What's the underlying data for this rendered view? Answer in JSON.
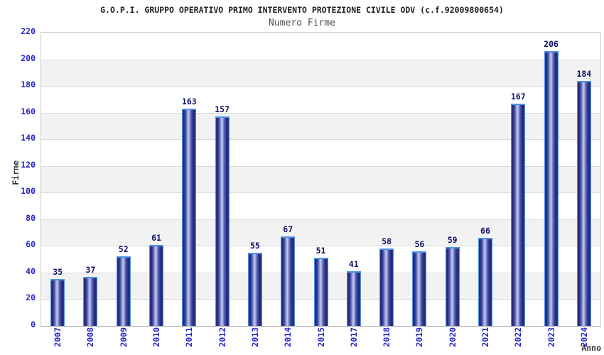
{
  "header": {
    "title": "G.O.P.I. GRUPPO OPERATIVO PRIMO INTERVENTO PROTEZIONE CIVILE ODV (c.f.92009800654)",
    "subtitle": "Numero Firme"
  },
  "chart_data": {
    "type": "bar",
    "title": "G.O.P.I. GRUPPO OPERATIVO PRIMO INTERVENTO PROTEZIONE CIVILE ODV (c.f.92009800654)",
    "subtitle": "Numero Firme",
    "categories": [
      "2007",
      "2008",
      "2009",
      "2010",
      "2011",
      "2012",
      "2013",
      "2014",
      "2015",
      "2017",
      "2018",
      "2019",
      "2020",
      "2021",
      "2022",
      "2023",
      "2024"
    ],
    "values": [
      35,
      37,
      52,
      61,
      163,
      157,
      55,
      67,
      51,
      41,
      58,
      56,
      59,
      66,
      167,
      206,
      184
    ],
    "xlabel": "Anno",
    "ylabel": "Firme",
    "ylim": [
      0,
      220
    ],
    "ytick_step": 20,
    "grid": true,
    "band_fill": "alternating",
    "legend": "none",
    "colors": {
      "bar_dark": "#20276f",
      "bar_highlight": "#c3c8ec",
      "bar_outline": "#4e90e8",
      "tick_label": "#2424cc",
      "value_label": "#10106a",
      "axis_title": "#333333",
      "band_gray": "#f2f2f2",
      "gridline": "#d9d9d9",
      "title_color": "#1f1f1f",
      "subtitle_color": "#4d4d4d"
    }
  }
}
